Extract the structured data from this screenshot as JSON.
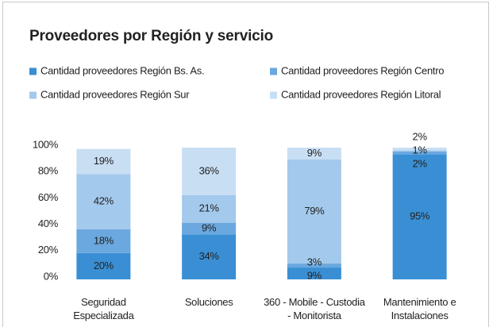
{
  "chart_data": {
    "type": "stacked_bar_100",
    "title": "Proveedores por Región y servicio",
    "categories": [
      "Seguridad Especializada",
      "Soluciones",
      "360 - Mobile - Custodia - Monitorista",
      "Mantenimiento e Instalaciones"
    ],
    "series": [
      {
        "name": "Cantidad proveedores Región Bs. As.",
        "color": "#3a8fd4",
        "values": [
          20,
          34,
          9,
          95
        ],
        "value_labels": [
          "20%",
          "34%",
          "9%",
          "95%"
        ]
      },
      {
        "name": "Cantidad proveedores Región Centro",
        "color": "#6aa8df",
        "values": [
          18,
          9,
          3,
          2
        ],
        "value_labels": [
          "18%",
          "9%",
          "3%",
          "2%"
        ]
      },
      {
        "name": "Cantidad proveedores Región Sur",
        "color": "#a3c9ec",
        "values": [
          42,
          21,
          79,
          1
        ],
        "value_labels": [
          "42%",
          "21%",
          "79%",
          "1%"
        ]
      },
      {
        "name": "Cantidad proveedores Región Litoral",
        "color": "#c8def3",
        "values": [
          19,
          36,
          9,
          2
        ],
        "value_labels": [
          "19%",
          "36%",
          "9%",
          "2%"
        ]
      }
    ],
    "ylim": [
      0,
      100
    ],
    "yticks": [
      {
        "value": 0,
        "label": "0%"
      },
      {
        "value": 20,
        "label": "20%"
      },
      {
        "value": 40,
        "label": "40%"
      },
      {
        "value": 60,
        "label": "60%"
      },
      {
        "value": 80,
        "label": "80%"
      },
      {
        "value": 100,
        "label": "100%"
      }
    ],
    "grid": false,
    "legend": "top"
  }
}
